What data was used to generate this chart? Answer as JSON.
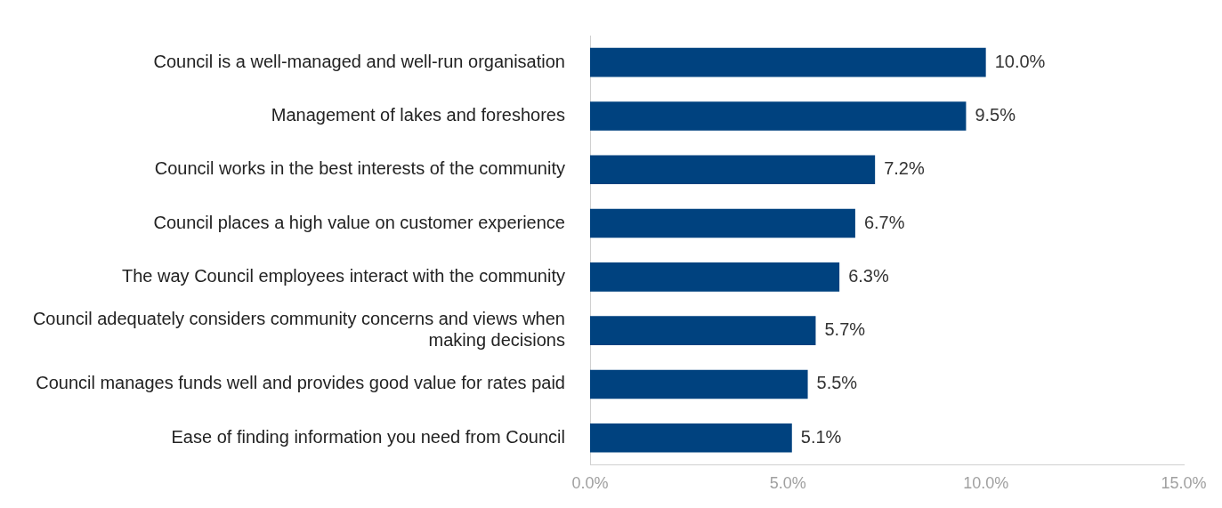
{
  "chart_data": {
    "type": "bar",
    "orientation": "horizontal",
    "categories": [
      "Council is a well-managed and well-run organisation",
      "Management of lakes and foreshores",
      "Council works in the best interests of the community",
      "Council places a high value on customer experience",
      "The way Council employees interact with the community",
      "Council adequately considers community concerns and views when making decisions",
      "Council manages funds well and provides good value for rates paid",
      "Ease of finding information you need from Council"
    ],
    "values": [
      10.0,
      9.5,
      7.2,
      6.7,
      6.3,
      5.7,
      5.5,
      5.1
    ],
    "value_labels": [
      "10.0%",
      "9.5%",
      "7.2%",
      "6.7%",
      "6.3%",
      "5.7%",
      "5.5%",
      "5.1%"
    ],
    "color": "#00427f",
    "xlim": [
      0,
      15
    ],
    "xticks": [
      {
        "value": 0,
        "label": "0.0%"
      },
      {
        "value": 5,
        "label": "5.0%"
      },
      {
        "value": 10,
        "label": "10.0%"
      },
      {
        "value": 15,
        "label": "15.0%"
      }
    ],
    "grid": false,
    "legend": false
  }
}
